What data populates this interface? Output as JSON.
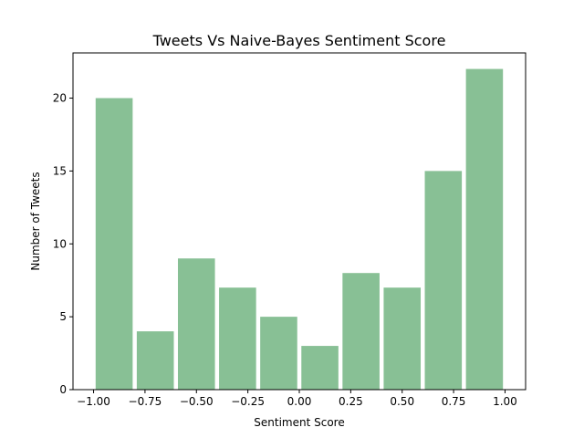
{
  "chart_data": {
    "type": "bar",
    "title": "Tweets Vs Naive-Bayes Sentiment Score",
    "xlabel": "Sentiment Score",
    "ylabel": "Number of Tweets",
    "bin_edges": [
      -1.0,
      -0.8,
      -0.6,
      -0.4,
      -0.2,
      0.0,
      0.2,
      0.4,
      0.6,
      0.8,
      1.0
    ],
    "values": [
      20,
      4,
      9,
      7,
      5,
      3,
      8,
      7,
      15,
      22
    ],
    "xlim": [
      -1.1,
      1.1
    ],
    "ylim": [
      0,
      23.1
    ],
    "xticks": [
      -1.0,
      -0.75,
      -0.5,
      -0.25,
      0.0,
      0.25,
      0.5,
      0.75,
      1.0
    ],
    "xtick_labels": [
      "−1.00",
      "−0.75",
      "−0.50",
      "−0.25",
      "0.00",
      "0.25",
      "0.50",
      "0.75",
      "1.00"
    ],
    "yticks": [
      0,
      5,
      10,
      15,
      20
    ],
    "ytick_labels": [
      "0",
      "5",
      "10",
      "15",
      "20"
    ],
    "bar_width_fraction": 0.9,
    "bar_color": "#88c095",
    "grid": false,
    "legend": "none"
  }
}
